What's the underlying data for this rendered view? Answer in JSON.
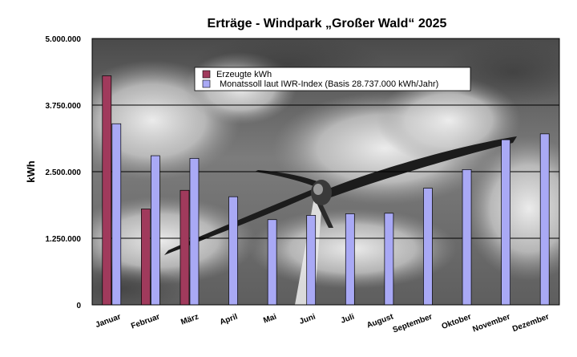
{
  "chart_data": {
    "type": "bar",
    "title": "Erträge - Windpark „Großer Wald“ 2025",
    "ylabel": "kWh",
    "xlabel": "",
    "ylim": [
      0,
      5000000
    ],
    "yticks": [
      0,
      1250000,
      2500000,
      3750000,
      5000000
    ],
    "ytick_labels": [
      "0",
      "1.250.000",
      "2.500.000",
      "3.750.000",
      "5.000.000"
    ],
    "grid": true,
    "legend_position": "top",
    "categories": [
      "Januar",
      "Februar",
      "März",
      "April",
      "Mai",
      "Juni",
      "Juli",
      "August",
      "September",
      "Oktober",
      "November",
      "Dezember"
    ],
    "series": [
      {
        "name": "Erzeugte kWh",
        "color": "#a03a5c",
        "values": [
          4300000,
          1800000,
          2150000,
          null,
          null,
          null,
          null,
          null,
          null,
          null,
          null,
          null
        ]
      },
      {
        "name": "Monatssoll laut IWR-Index (Basis 28.737.000 kWh/Jahr)",
        "color": "#a9a9f5",
        "values": [
          3400000,
          2800000,
          2750000,
          2030000,
          1600000,
          1680000,
          1710000,
          1720000,
          2190000,
          2540000,
          3100000,
          3210000
        ]
      }
    ]
  }
}
